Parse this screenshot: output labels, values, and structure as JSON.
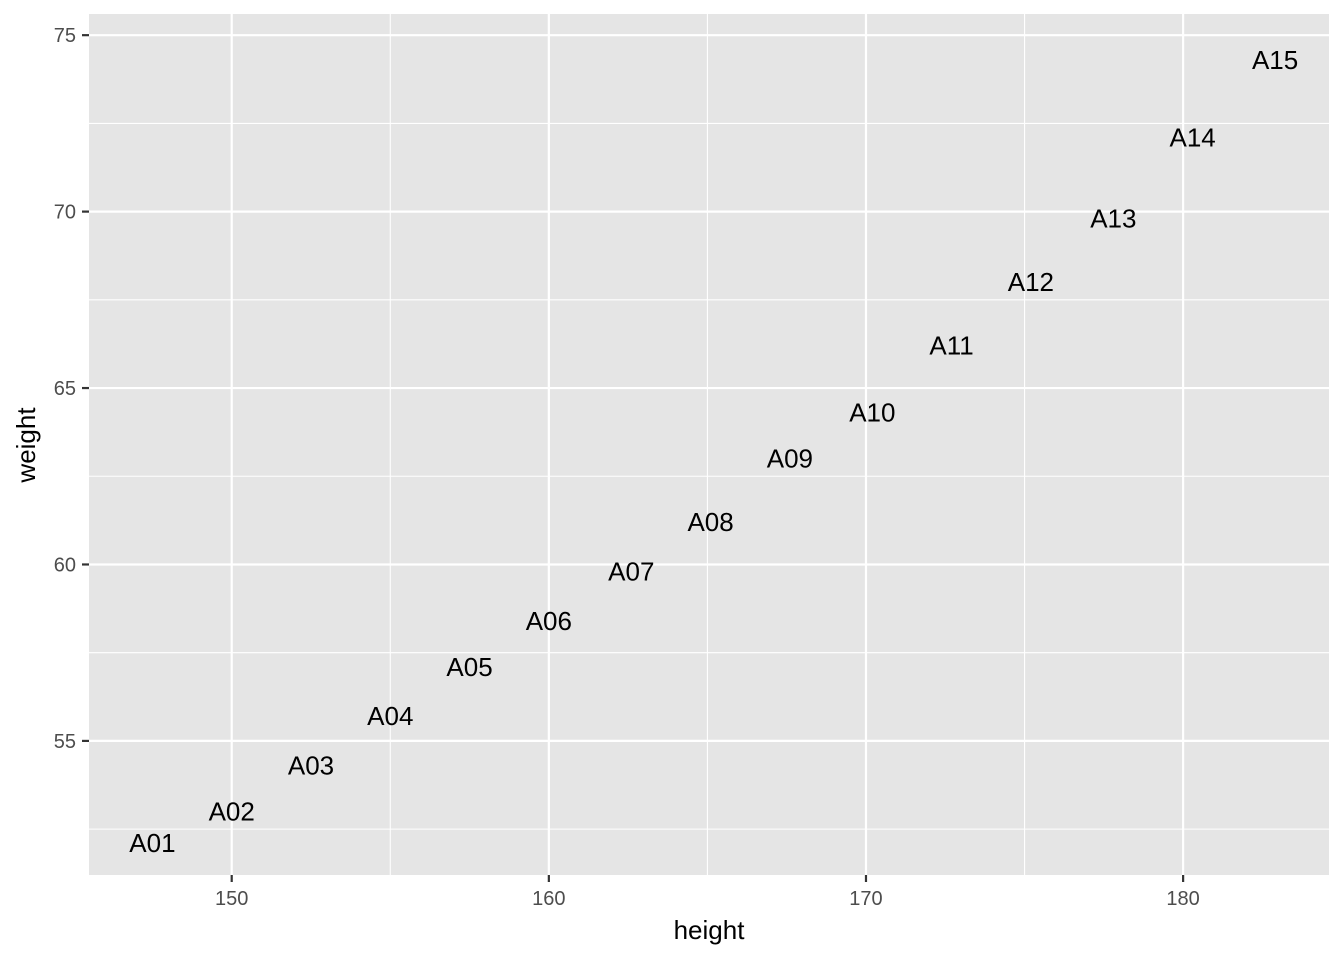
{
  "chart_data": {
    "type": "scatter",
    "mark": "text",
    "title": "",
    "xlabel": "height",
    "ylabel": "weight",
    "xlim": [
      145.5,
      184.6
    ],
    "ylim": [
      51.2,
      75.6
    ],
    "x_ticks": [
      150,
      160,
      170,
      180
    ],
    "y_ticks": [
      55,
      60,
      65,
      70,
      75
    ],
    "x_minor_ticks": [
      155,
      165,
      175
    ],
    "y_minor_ticks": [
      52.5,
      57.5,
      62.5,
      67.5,
      72.5
    ],
    "grid": true,
    "legend": "none",
    "colors": {
      "panel": "#e5e5e5",
      "grid": "#ffffff",
      "text": "#000000",
      "tick_text": "#4d4d4d"
    },
    "points": [
      {
        "label": "A01",
        "x": 147.5,
        "y": 52.1
      },
      {
        "label": "A02",
        "x": 150.0,
        "y": 53.0
      },
      {
        "label": "A03",
        "x": 152.5,
        "y": 54.3
      },
      {
        "label": "A04",
        "x": 155.0,
        "y": 55.7
      },
      {
        "label": "A05",
        "x": 157.5,
        "y": 57.1
      },
      {
        "label": "A06",
        "x": 160.0,
        "y": 58.4
      },
      {
        "label": "A07",
        "x": 162.6,
        "y": 59.8
      },
      {
        "label": "A08",
        "x": 165.1,
        "y": 61.2
      },
      {
        "label": "A09",
        "x": 167.6,
        "y": 63.0
      },
      {
        "label": "A10",
        "x": 170.2,
        "y": 64.3
      },
      {
        "label": "A11",
        "x": 172.7,
        "y": 66.2
      },
      {
        "label": "A12",
        "x": 175.2,
        "y": 68.0
      },
      {
        "label": "A13",
        "x": 177.8,
        "y": 69.8
      },
      {
        "label": "A14",
        "x": 180.3,
        "y": 72.1
      },
      {
        "label": "A15",
        "x": 182.9,
        "y": 74.3
      }
    ]
  }
}
